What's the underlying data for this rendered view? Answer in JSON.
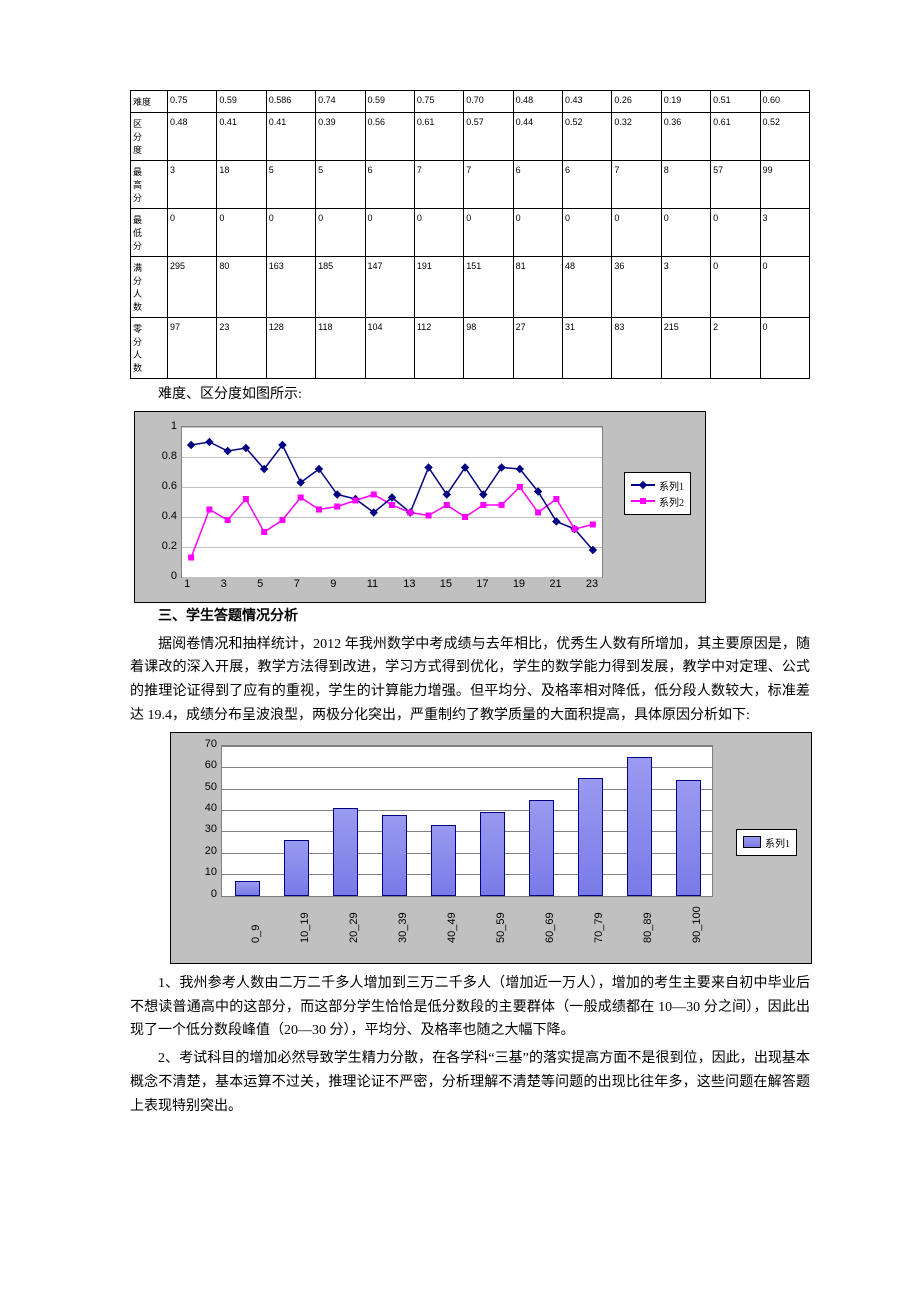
{
  "table": {
    "row_labels": [
      "难度",
      "区分度",
      "最高分",
      "最低分",
      "满分人数",
      "零分人数"
    ],
    "rows": [
      [
        "0.75",
        "0.59",
        "0.586",
        "0.74",
        "0.59",
        "0.75",
        "0.70",
        "0.48",
        "0.43",
        "0.26",
        "0.19",
        "0.51",
        "0.60"
      ],
      [
        "0.48",
        "0.41",
        "0.41",
        "0.39",
        "0.56",
        "0.61",
        "0.57",
        "0.44",
        "0.52",
        "0.32",
        "0.36",
        "0.61",
        "0.52"
      ],
      [
        "3",
        "18",
        "5",
        "5",
        "6",
        "7",
        "7",
        "6",
        "6",
        "7",
        "8",
        "57",
        "99"
      ],
      [
        "0",
        "0",
        "0",
        "0",
        "0",
        "0",
        "0",
        "0",
        "0",
        "0",
        "0",
        "0",
        "3"
      ],
      [
        "295",
        "80",
        "163",
        "185",
        "147",
        "191",
        "151",
        "81",
        "48",
        "36",
        "3",
        "0",
        "0"
      ],
      [
        "97",
        "23",
        "128",
        "118",
        "104",
        "112",
        "98",
        "27",
        "31",
        "83",
        "215",
        "2",
        "0"
      ]
    ]
  },
  "caption1": "难度、区分度如图所示:",
  "line_chart": {
    "type": "line",
    "background_color": "#c0c0c0",
    "plot_bg": "#ffffff",
    "grid_color": "#c0c0c0",
    "x_ticks": [
      "1",
      "3",
      "5",
      "7",
      "9",
      "11",
      "13",
      "15",
      "17",
      "19",
      "21",
      "23"
    ],
    "y_ticks": [
      "0",
      "0.2",
      "0.4",
      "0.6",
      "0.8",
      "1"
    ],
    "ylim": [
      0,
      1
    ],
    "n_points": 23,
    "series": [
      {
        "name": "系列1",
        "color": "#000080",
        "marker": "diamond",
        "values": [
          0.88,
          0.9,
          0.84,
          0.86,
          0.72,
          0.88,
          0.63,
          0.72,
          0.55,
          0.52,
          0.43,
          0.53,
          0.43,
          0.73,
          0.55,
          0.73,
          0.55,
          0.73,
          0.72,
          0.57,
          0.37,
          0.32,
          0.18
        ]
      },
      {
        "name": "系列2",
        "color": "#ff00ff",
        "marker": "square",
        "values": [
          0.13,
          0.45,
          0.38,
          0.52,
          0.3,
          0.38,
          0.53,
          0.45,
          0.47,
          0.51,
          0.55,
          0.48,
          0.43,
          0.41,
          0.48,
          0.4,
          0.48,
          0.48,
          0.6,
          0.43,
          0.52,
          0.32,
          0.35
        ]
      }
    ],
    "legend_labels": [
      "系列1",
      "系列2"
    ],
    "label_fontsize": 11
  },
  "section3_title": "三、学生答题情况分析",
  "para1": "据阅卷情况和抽样统计，2012 年我州数学中考成绩与去年相比，优秀生人数有所增加，其主要原因是，随着课改的深入开展，教学方法得到改进，学习方式得到优化，学生的数学能力得到发展，教学中对定理、公式的推理论证得到了应有的重视，学生的计算能力增强。但平均分、及格率相对降低，低分段人数较大，标准差达 19.4，成绩分布呈波浪型，两极分化突出，严重制约了教学质量的大面积提高，具体原因分析如下:",
  "bar_chart": {
    "type": "bar",
    "background_color": "#c0c0c0",
    "plot_bg": "#ffffff",
    "grid_color": "#808080",
    "categories": [
      "0_9",
      "10_19",
      "20_29",
      "30_39",
      "40_49",
      "50_59",
      "60_69",
      "70_79",
      "80_89",
      "90_100"
    ],
    "values": [
      6,
      25,
      40,
      37,
      32,
      38,
      44,
      54,
      64,
      53
    ],
    "ylim": [
      0,
      70
    ],
    "ytick_step": 10,
    "bar_color_top": "#9a9af0",
    "bar_color_bottom": "#7a7ae8",
    "bar_border": "#000080",
    "legend_label": "系列1",
    "label_fontsize": 11
  },
  "para2": "1、我州参考人数由二万二千多人增加到三万二千多人（增加近一万人），增加的考生主要来自初中毕业后不想读普通高中的这部分，而这部分学生恰恰是低分数段的主要群体（一般成绩都在 10—30 分之间），因此出现了一个低分数段峰值（20—30 分），平均分、及格率也随之大幅下降。",
  "para3": "2、考试科目的增加必然导致学生精力分散，在各学科“三基”的落实提高方面不是很到位，因此，出现基本概念不清楚，基本运算不过关，推理论证不严密，分析理解不清楚等问题的出现比往年多，这些问题在解答题上表现特别突出。"
}
